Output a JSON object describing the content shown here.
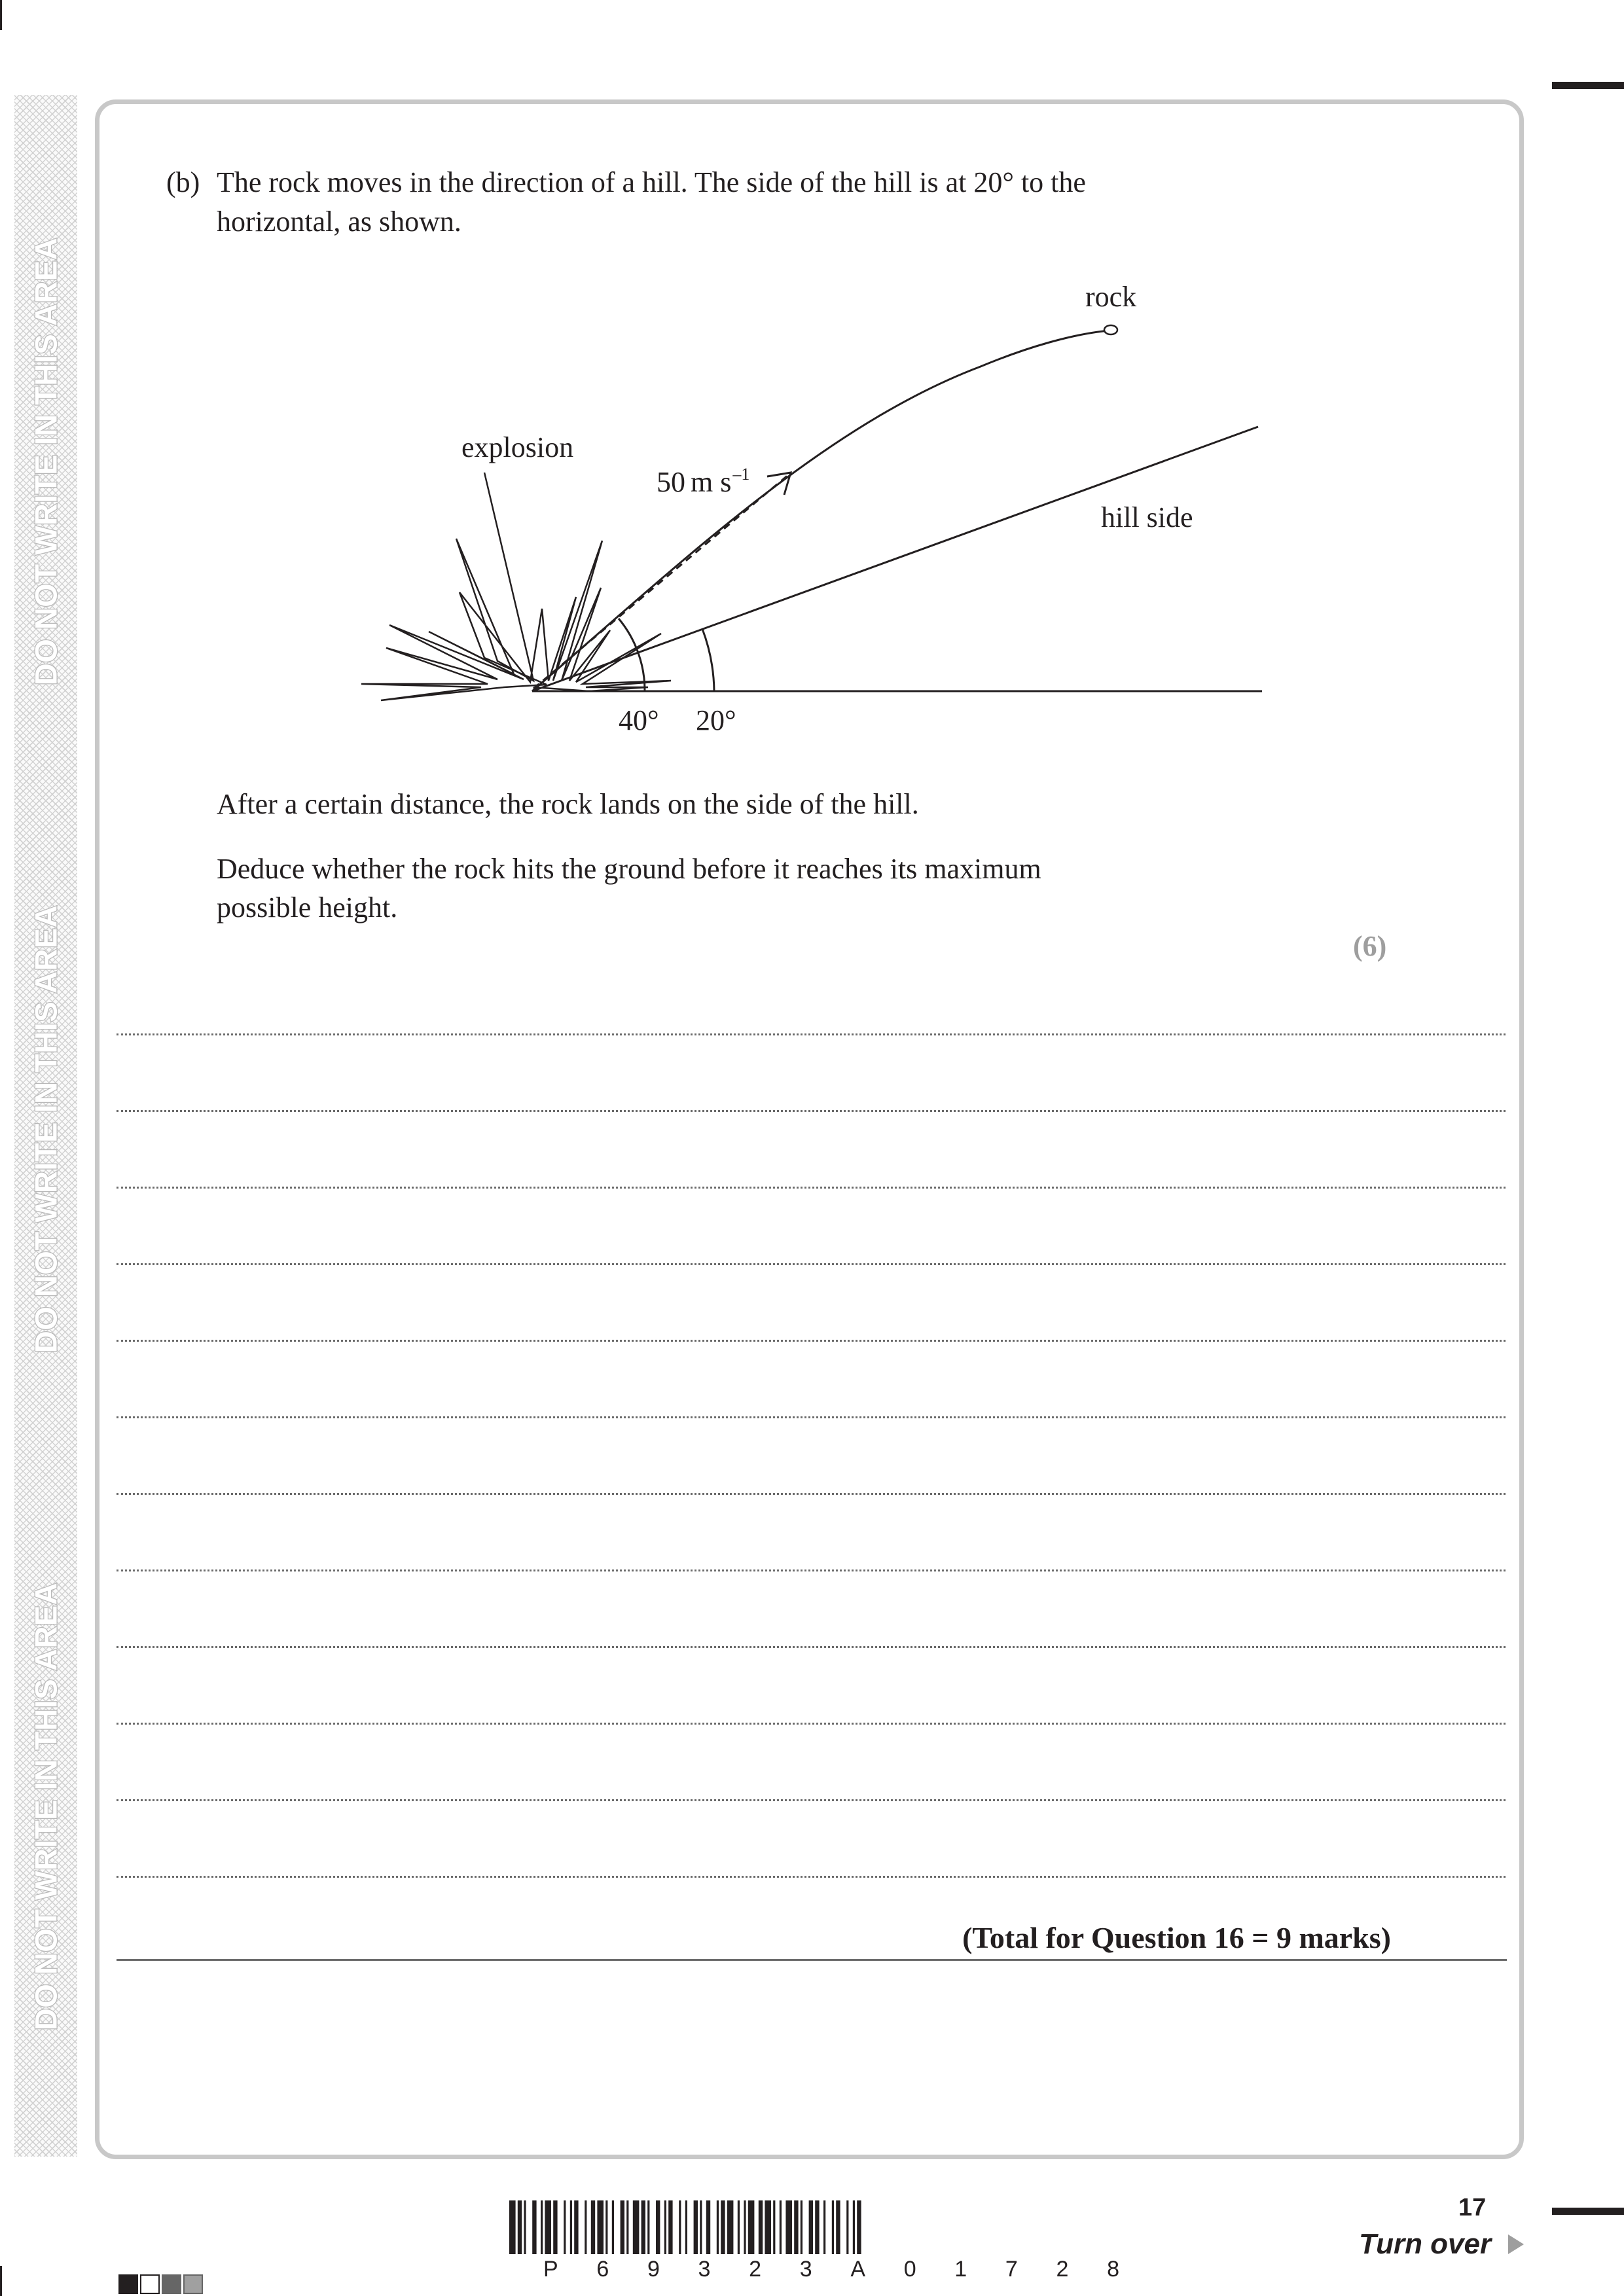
{
  "margin": {
    "warning_text": "DO NOT WRITE IN THIS AREA"
  },
  "question": {
    "part_label": "(b)",
    "prompt_lines": [
      "The rock moves in the direction of a hill.  The side of the hill is at 20° to the",
      "horizontal, as shown."
    ],
    "followup_lines": [
      "After a certain distance, the rock lands on the side of the hill.",
      "Deduce whether the rock hits the ground before it reaches its maximum",
      "possible height."
    ],
    "marks": "(6)",
    "answer_line_count": 12,
    "total": "(Total for Question 16 = 9 marks)"
  },
  "diagram": {
    "rock_label": "rock",
    "explosion_label": "explosion",
    "velocity_value": "50",
    "velocity_unit": "m s",
    "velocity_exponent": "–1",
    "hill_label": "hill side",
    "angle_launch": "40°",
    "angle_hill": "20°"
  },
  "footer": {
    "page_number": "17",
    "turn_over": "Turn over",
    "barcode_digits": [
      "P",
      "6",
      "9",
      "3",
      "2",
      "3",
      "A",
      "0",
      "1",
      "7",
      "2",
      "8"
    ]
  }
}
